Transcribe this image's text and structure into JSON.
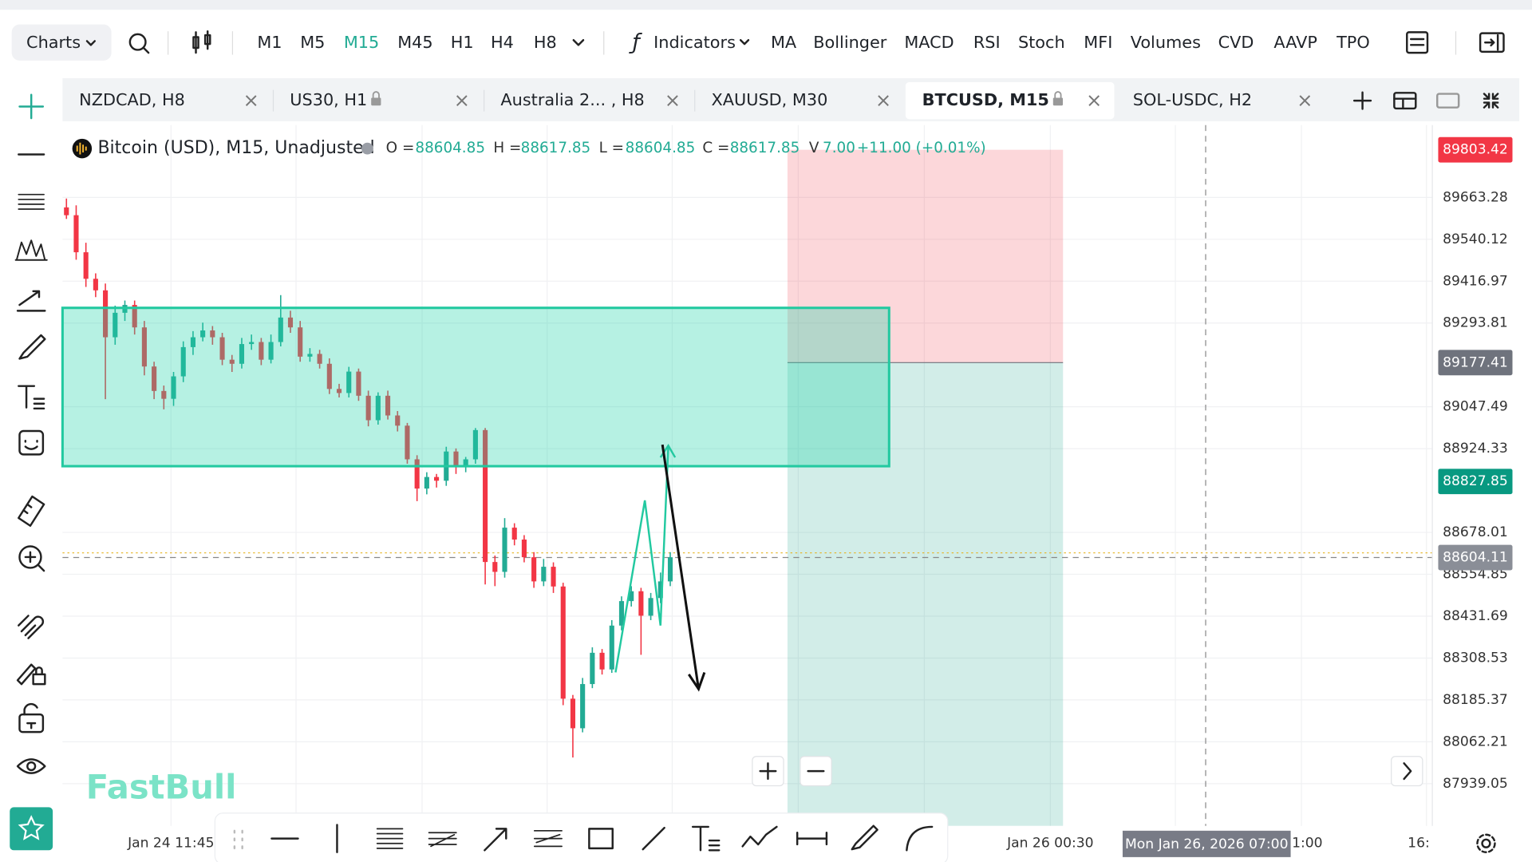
{
  "toolbar": {
    "charts": "Charts",
    "timeframes": [
      "M1",
      "M5",
      "M15",
      "M45",
      "H1",
      "H4",
      "H8"
    ],
    "active_timeframe": "M15",
    "indicators": "Indicators",
    "indicator_buttons": [
      "MA",
      "Bollinger",
      "MACD",
      "RSI",
      "Stoch",
      "MFI",
      "Volumes",
      "CVD",
      "AAVP",
      "TPO"
    ]
  },
  "tabs": [
    {
      "label": "NZDCAD, H8",
      "locked": false,
      "active": false
    },
    {
      "label": "US30, H1",
      "locked": true,
      "active": false
    },
    {
      "label": "Australia 2... , H8",
      "locked": false,
      "active": false
    },
    {
      "label": "XAUUSD, M30",
      "locked": false,
      "active": false
    },
    {
      "label": "BTCUSD, M15",
      "locked": true,
      "active": true
    },
    {
      "label": "SOL-USDC, H2",
      "locked": false,
      "active": false
    }
  ],
  "chart": {
    "type": "candlestick",
    "symbol": "Bitcoin (USD), M15, Unadjusted",
    "legend": {
      "open_label": "O =",
      "open": 88604.85,
      "high_label": "H =",
      "high": 88617.85,
      "low_label": "L =",
      "low": 88604.85,
      "close_label": "C =",
      "close": 88617.85,
      "volume_label": "V",
      "volume": "7.00",
      "change": "+11.00 (+0.01%)"
    },
    "up_color": "#22ab94",
    "down_color": "#f23645",
    "ylim": [
      87815,
      89876
    ],
    "yticks": [
      89663.28,
      89540.12,
      89416.97,
      89293.81,
      89047.49,
      88924.33,
      88678.01,
      88554.85,
      88431.69,
      88308.53,
      88185.37,
      88062.21,
      87939.05
    ],
    "grid": true,
    "price_tags": [
      {
        "value": 89803.42,
        "color": "#f23645"
      },
      {
        "value": 89177.41,
        "color": "#6f737d"
      },
      {
        "value": 88827.85,
        "color": "#089981"
      },
      {
        "value": 88604.11,
        "color": "#8a8e97"
      }
    ],
    "candles": [
      [
        89634,
        89660,
        89600,
        89611
      ],
      [
        89611,
        89640,
        89480,
        89502
      ],
      [
        89502,
        89530,
        89400,
        89424
      ],
      [
        89424,
        89440,
        89370,
        89390
      ],
      [
        89390,
        89410,
        89070,
        89252
      ],
      [
        89252,
        89345,
        89230,
        89324
      ],
      [
        89324,
        89360,
        89300,
        89347
      ],
      [
        89347,
        89360,
        89260,
        89281
      ],
      [
        89281,
        89300,
        89140,
        89166
      ],
      [
        89166,
        89180,
        89070,
        89094
      ],
      [
        89094,
        89110,
        89040,
        89071
      ],
      [
        89071,
        89150,
        89050,
        89137
      ],
      [
        89137,
        89240,
        89120,
        89223
      ],
      [
        89223,
        89270,
        89200,
        89252
      ],
      [
        89252,
        89295,
        89240,
        89272
      ],
      [
        89272,
        89285,
        89230,
        89252
      ],
      [
        89252,
        89265,
        89170,
        89186
      ],
      [
        89186,
        89200,
        89150,
        89174
      ],
      [
        89174,
        89250,
        89160,
        89232
      ],
      [
        89232,
        89260,
        89215,
        89238
      ],
      [
        89238,
        89250,
        89170,
        89186
      ],
      [
        89186,
        89260,
        89175,
        89238
      ],
      [
        89238,
        89376,
        89225,
        89310
      ],
      [
        89310,
        89330,
        89265,
        89281
      ],
      [
        89281,
        89300,
        89180,
        89195
      ],
      [
        89195,
        89220,
        89180,
        89203
      ],
      [
        89203,
        89215,
        89160,
        89174
      ],
      [
        89174,
        89190,
        89085,
        89100
      ],
      [
        89100,
        89115,
        89075,
        89088
      ],
      [
        89088,
        89165,
        89075,
        89151
      ],
      [
        89151,
        89160,
        89065,
        89080
      ],
      [
        89080,
        89095,
        88990,
        89008
      ],
      [
        89008,
        89090,
        88995,
        89080
      ],
      [
        89080,
        89095,
        89010,
        89022
      ],
      [
        89022,
        89035,
        88975,
        88992
      ],
      [
        88992,
        89000,
        88880,
        88893
      ],
      [
        88893,
        88905,
        88770,
        88807
      ],
      [
        88807,
        88855,
        88790,
        88841
      ],
      [
        88841,
        88850,
        88810,
        88830
      ],
      [
        88830,
        88930,
        88815,
        88916
      ],
      [
        88916,
        88925,
        88850,
        88870
      ],
      [
        88870,
        88900,
        88855,
        88893
      ],
      [
        88893,
        88985,
        88880,
        88979
      ],
      [
        88979,
        88985,
        88525,
        88591
      ],
      [
        88591,
        88610,
        88520,
        88562
      ],
      [
        88562,
        88720,
        88545,
        88692
      ],
      [
        88692,
        88705,
        88640,
        88657
      ],
      [
        88657,
        88670,
        88590,
        88605
      ],
      [
        88605,
        88620,
        88515,
        88534
      ],
      [
        88534,
        88600,
        88520,
        88577
      ],
      [
        88577,
        88590,
        88500,
        88519
      ],
      [
        88519,
        88530,
        88170,
        88189
      ],
      [
        88189,
        88200,
        88016,
        88102
      ],
      [
        88102,
        88250,
        88090,
        88232
      ],
      [
        88232,
        88340,
        88220,
        88324
      ],
      [
        88324,
        88335,
        88260,
        88275
      ],
      [
        88275,
        88420,
        88265,
        88404
      ],
      [
        88404,
        88490,
        88390,
        88476
      ],
      [
        88476,
        88520,
        88460,
        88505
      ],
      [
        88505,
        88515,
        88318,
        88433
      ],
      [
        88433,
        88500,
        88420,
        88485
      ],
      [
        88485,
        88560,
        88470,
        88534
      ],
      [
        88534,
        88620,
        88520,
        88605
      ]
    ],
    "time_labels": [
      "Jan 24 11:45",
      "Jan 26 00:30",
      "1:00",
      "16:"
    ],
    "crosshair_label": "Mon Jan 26, 2026 07:00"
  },
  "watermark": "FastBull"
}
